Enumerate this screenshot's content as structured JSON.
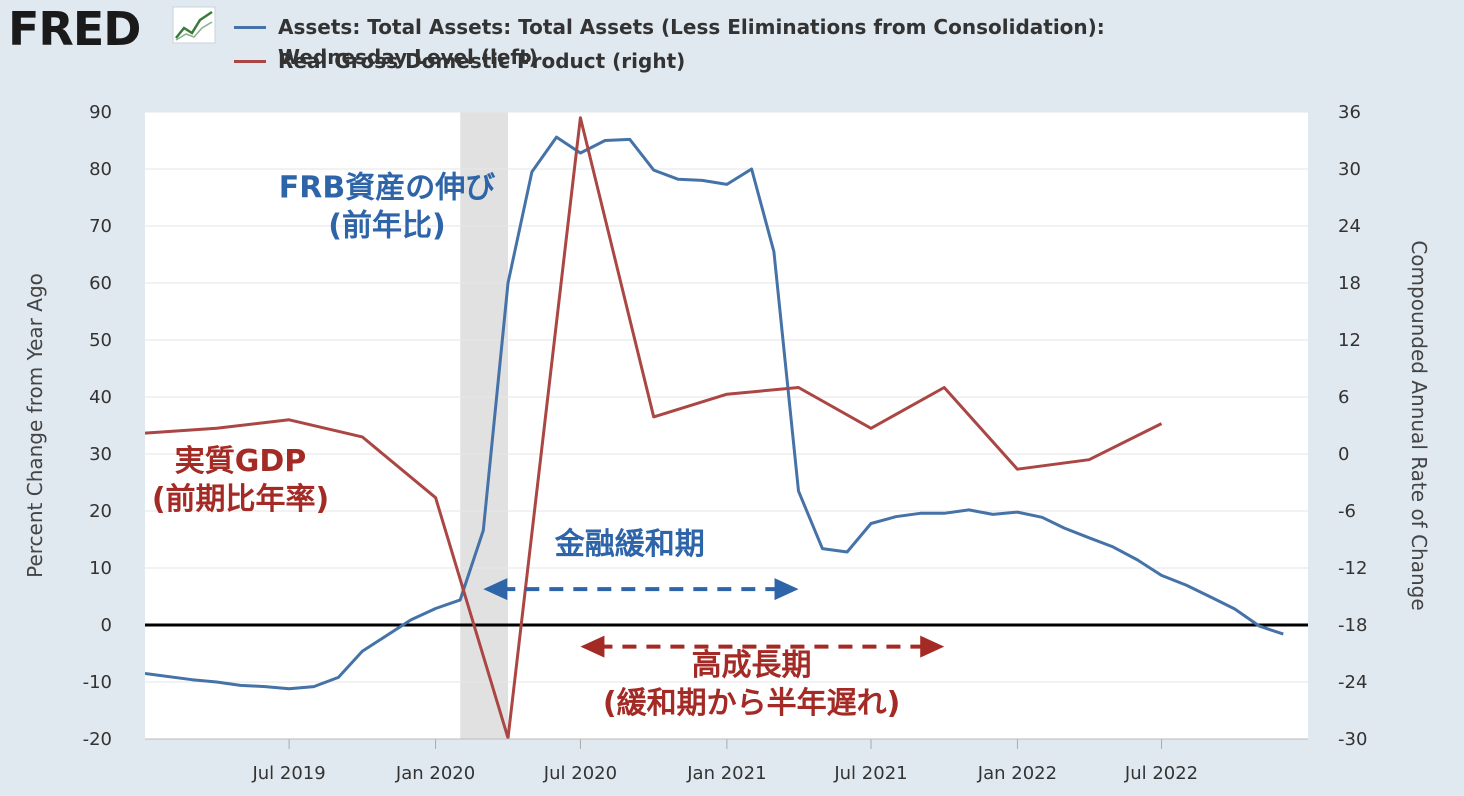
{
  "header": {
    "logo_text": "FRED",
    "logo_mark": "fred-line-chart-icon",
    "legend": [
      {
        "lines": [
          "Assets: Total Assets: Total Assets (Less Eliminations from Consolidation):",
          "Wednesday Level (left)"
        ],
        "color": "#4572a7"
      },
      {
        "lines": [
          "Real Gross Domestic Product (right)"
        ],
        "color": "#aa4643"
      }
    ]
  },
  "chart_data": {
    "type": "line",
    "ylabel": "Percent Change from Year Ago",
    "y2label": "Compounded Annual Rate of Change",
    "ylim": [
      -20,
      90
    ],
    "y2lim": [
      -30,
      36
    ],
    "yticks": [
      "90",
      "80",
      "70",
      "60",
      "50",
      "40",
      "30",
      "20",
      "10",
      "0",
      "-10",
      "-20"
    ],
    "y2ticks": [
      "36",
      "30",
      "24",
      "18",
      "12",
      "6",
      "0",
      "-6",
      "-12",
      "-18",
      "-24",
      "-30"
    ],
    "xticks": [
      "Jul 2019",
      "Jan 2020",
      "Jul 2020",
      "Jan 2021",
      "Jul 2021",
      "Jan 2022",
      "Jul 2022"
    ],
    "recession": {
      "start": "2020-02",
      "end": "2020-04"
    },
    "series": [
      {
        "name": "Assets: Total Assets: Total Assets (Less Eliminations from Consolidation): Wednesday Level (left)",
        "axis": "left",
        "color": "#4572a7",
        "points": [
          [
            "2019-01",
            -8.5
          ],
          [
            "2019-03",
            -9.6
          ],
          [
            "2019-04",
            -10.0
          ],
          [
            "2019-05",
            -10.6
          ],
          [
            "2019-06",
            -10.8
          ],
          [
            "2019-07",
            -11.2
          ],
          [
            "2019-08",
            -10.8
          ],
          [
            "2019-09",
            -9.2
          ],
          [
            "2019-10",
            -4.6
          ],
          [
            "2019-12",
            0.9
          ],
          [
            "2020-01",
            2.9
          ],
          [
            "2020-02",
            4.4
          ],
          [
            "2020-03",
            16.6
          ],
          [
            "2020-04",
            60.0
          ],
          [
            "2020-05",
            79.5
          ],
          [
            "2020-06",
            85.6
          ],
          [
            "2020-07",
            82.8
          ],
          [
            "2020-08",
            85.0
          ],
          [
            "2020-09",
            85.2
          ],
          [
            "2020-10",
            79.8
          ],
          [
            "2020-11",
            78.2
          ],
          [
            "2020-12",
            78.0
          ],
          [
            "2021-01",
            77.3
          ],
          [
            "2021-02",
            80.0
          ],
          [
            "2021-03",
            65.5
          ],
          [
            "2021-04",
            23.5
          ],
          [
            "2021-05",
            13.4
          ],
          [
            "2021-06",
            12.8
          ],
          [
            "2021-07",
            17.8
          ],
          [
            "2021-08",
            19.0
          ],
          [
            "2021-09",
            19.6
          ],
          [
            "2021-10",
            19.6
          ],
          [
            "2021-11",
            20.2
          ],
          [
            "2021-12",
            19.4
          ],
          [
            "2022-01",
            19.8
          ],
          [
            "2022-02",
            18.9
          ],
          [
            "2022-03",
            17.0
          ],
          [
            "2022-04",
            15.3
          ],
          [
            "2022-05",
            13.7
          ],
          [
            "2022-06",
            11.4
          ],
          [
            "2022-07",
            8.7
          ],
          [
            "2022-08",
            7.0
          ],
          [
            "2022-09",
            4.9
          ],
          [
            "2022-10",
            2.8
          ],
          [
            "2022-11",
            -0.2
          ],
          [
            "2022-12",
            -1.6
          ]
        ]
      },
      {
        "name": "Real Gross Domestic Product (right)",
        "axis": "right",
        "color": "#aa4643",
        "points": [
          [
            "2019-01",
            2.2
          ],
          [
            "2019-04",
            2.7
          ],
          [
            "2019-07",
            3.6
          ],
          [
            "2019-10",
            1.8
          ],
          [
            "2020-01",
            -4.6
          ],
          [
            "2020-04",
            -29.9
          ],
          [
            "2020-07",
            35.4
          ],
          [
            "2020-10",
            3.9
          ],
          [
            "2021-01",
            6.3
          ],
          [
            "2021-04",
            7.0
          ],
          [
            "2021-07",
            2.7
          ],
          [
            "2021-10",
            7.0
          ],
          [
            "2022-01",
            -1.6
          ],
          [
            "2022-04",
            -0.6
          ],
          [
            "2022-07",
            3.2
          ]
        ]
      }
    ],
    "annotations": [
      {
        "lines": [
          "FRB資産の伸び",
          "(前年比)"
        ],
        "color": "#2e64a8",
        "x": "2019-11",
        "y": 75
      },
      {
        "lines": [
          "実質GDP",
          "(前期比年率)"
        ],
        "color": "#a32a25",
        "x": "2019-05",
        "y": 27
      },
      {
        "lines": [
          "金融緩和期"
        ],
        "color": "#2e64a8",
        "x": "2020-09",
        "y": 12.5
      },
      {
        "lines": [
          "高成長期",
          "(緩和期から半年遅れ)"
        ],
        "color": "#a32a25",
        "x": "2021-02",
        "y": -8.8
      }
    ],
    "ranges": [
      {
        "start": "2020-03",
        "end": "2021-04",
        "y": 6.3,
        "color": "#2e64a8"
      },
      {
        "start": "2020-07",
        "end": "2021-10",
        "y": -3.8,
        "color": "#a32a25"
      }
    ]
  }
}
